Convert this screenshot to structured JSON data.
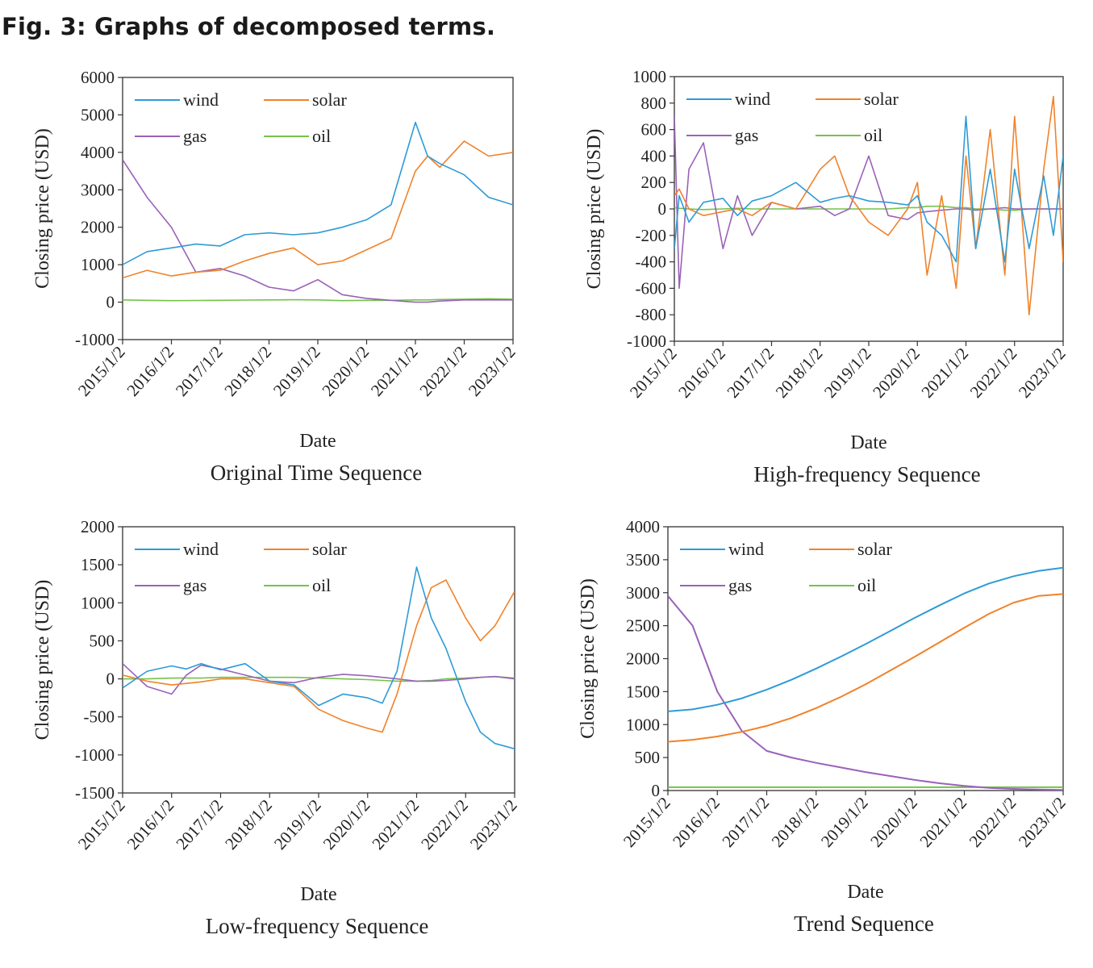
{
  "figure": {
    "title": "Fig. 3: Graphs of decomposed terms."
  },
  "colors": {
    "wind": "#2e9bd6",
    "solar": "#f0822a",
    "gas": "#9a62b8",
    "oil": "#74c24a"
  },
  "chart_data": [
    {
      "type": "line",
      "caption": "Original Time Sequence",
      "xlabel": "Date",
      "ylabel": "Closing price (USD)",
      "ylim": [
        -1000,
        6000
      ],
      "yticks": [
        "6000",
        "5000",
        "4000",
        "3000",
        "2000",
        "1000",
        "0",
        "-1000"
      ],
      "xticks": [
        "2015/1/2",
        "2016/1/2",
        "2017/1/2",
        "2018/1/2",
        "2019/1/2",
        "2020/1/2",
        "2021/1/2",
        "2022/1/2",
        "2023/1/2"
      ],
      "legend": [
        "wind",
        "solar",
        "gas",
        "oil"
      ],
      "x": [
        2015.0,
        2015.5,
        2016.0,
        2016.5,
        2017.0,
        2017.5,
        2018.0,
        2018.5,
        2019.0,
        2019.5,
        2020.0,
        2020.5,
        2021.0,
        2021.25,
        2021.5,
        2022.0,
        2022.5,
        2023.0
      ],
      "series": [
        {
          "name": "wind",
          "values": [
            1000,
            1350,
            1450,
            1550,
            1500,
            1800,
            1850,
            1800,
            1850,
            2000,
            2200,
            2600,
            4800,
            3900,
            3700,
            3400,
            2800,
            2600
          ]
        },
        {
          "name": "solar",
          "values": [
            650,
            850,
            700,
            800,
            850,
            1100,
            1300,
            1450,
            1000,
            1100,
            1400,
            1700,
            3500,
            3900,
            3600,
            4300,
            3900,
            4000
          ]
        },
        {
          "name": "gas",
          "values": [
            3800,
            2800,
            2000,
            800,
            900,
            700,
            400,
            300,
            600,
            200,
            100,
            50,
            0,
            0,
            30,
            60,
            60,
            60
          ]
        },
        {
          "name": "oil",
          "values": [
            60,
            50,
            40,
            45,
            50,
            55,
            60,
            65,
            60,
            40,
            50,
            50,
            60,
            60,
            70,
            80,
            90,
            80
          ]
        }
      ]
    },
    {
      "type": "line",
      "caption": "High-frequency Sequence",
      "xlabel": "Date",
      "ylabel": "Closing price (USD)",
      "ylim": [
        -1000,
        1000
      ],
      "yticks": [
        "1000",
        "800",
        "600",
        "400",
        "200",
        "0",
        "-200",
        "-400",
        "-600",
        "-800",
        "-1000"
      ],
      "xticks": [
        "2015/1/2",
        "2016/1/2",
        "2017/1/2",
        "2018/1/2",
        "2019/1/2",
        "2020/1/2",
        "2021/1/2",
        "2022/1/2",
        "2023/1/2"
      ],
      "legend": [
        "wind",
        "solar",
        "gas",
        "oil"
      ],
      "x": [
        2015.0,
        2015.1,
        2015.3,
        2015.6,
        2016.0,
        2016.3,
        2016.6,
        2017.0,
        2017.5,
        2018.0,
        2018.3,
        2018.6,
        2019.0,
        2019.4,
        2019.8,
        2020.0,
        2020.2,
        2020.5,
        2020.8,
        2021.0,
        2021.2,
        2021.5,
        2021.8,
        2022.0,
        2022.3,
        2022.6,
        2022.8,
        2023.0
      ],
      "series": [
        {
          "name": "wind",
          "values": [
            -300,
            100,
            -100,
            50,
            80,
            -50,
            60,
            100,
            200,
            50,
            80,
            100,
            60,
            50,
            30,
            100,
            -100,
            -200,
            -400,
            700,
            -300,
            300,
            -400,
            300,
            -300,
            250,
            -200,
            400
          ]
        },
        {
          "name": "solar",
          "values": [
            100,
            150,
            0,
            -50,
            -20,
            0,
            -50,
            50,
            0,
            300,
            400,
            100,
            -100,
            -200,
            0,
            200,
            -500,
            100,
            -600,
            400,
            -300,
            600,
            -500,
            700,
            -800,
            300,
            850,
            -400
          ]
        },
        {
          "name": "gas",
          "values": [
            700,
            -600,
            300,
            500,
            -300,
            100,
            -200,
            50,
            0,
            20,
            -50,
            0,
            400,
            -50,
            -80,
            -30,
            -20,
            -10,
            0,
            0,
            -10,
            0,
            10,
            0,
            0,
            0,
            0,
            0
          ]
        },
        {
          "name": "oil",
          "values": [
            10,
            5,
            0,
            -5,
            0,
            5,
            0,
            0,
            0,
            0,
            0,
            0,
            0,
            0,
            10,
            10,
            20,
            20,
            10,
            10,
            0,
            0,
            -10,
            -10,
            0,
            0,
            0,
            0
          ]
        }
      ]
    },
    {
      "type": "line",
      "caption": "Low-frequency Sequence",
      "xlabel": "Date",
      "ylabel": "Closing price (USD)",
      "ylim": [
        -1500,
        2000
      ],
      "yticks": [
        "2000",
        "1500",
        "1000",
        "500",
        "0",
        "-500",
        "-1000",
        "-1500"
      ],
      "xticks": [
        "2015/1/2",
        "2016/1/2",
        "2017/1/2",
        "2018/1/2",
        "2019/1/2",
        "2020/1/2",
        "2021/1/2",
        "2022/1/2",
        "2023/1/2"
      ],
      "legend": [
        "wind",
        "solar",
        "gas",
        "oil"
      ],
      "x": [
        2015.0,
        2015.5,
        2016.0,
        2016.3,
        2016.6,
        2017.0,
        2017.5,
        2018.0,
        2018.5,
        2019.0,
        2019.5,
        2020.0,
        2020.3,
        2020.6,
        2021.0,
        2021.3,
        2021.6,
        2022.0,
        2022.3,
        2022.6,
        2023.0
      ],
      "series": [
        {
          "name": "wind",
          "values": [
            -120,
            100,
            170,
            130,
            200,
            120,
            200,
            -30,
            -80,
            -350,
            -200,
            -250,
            -320,
            100,
            1470,
            800,
            400,
            -300,
            -700,
            -850,
            -920
          ]
        },
        {
          "name": "solar",
          "values": [
            50,
            -30,
            -80,
            -60,
            -40,
            0,
            0,
            -50,
            -100,
            -400,
            -550,
            -650,
            -700,
            -200,
            700,
            1200,
            1300,
            800,
            500,
            700,
            1150
          ]
        },
        {
          "name": "gas",
          "values": [
            200,
            -100,
            -200,
            50,
            180,
            130,
            50,
            -30,
            -50,
            20,
            60,
            40,
            20,
            0,
            -30,
            -30,
            -20,
            0,
            20,
            30,
            0
          ]
        },
        {
          "name": "oil",
          "values": [
            0,
            0,
            10,
            10,
            10,
            20,
            20,
            20,
            20,
            10,
            0,
            -10,
            -20,
            -30,
            -30,
            -20,
            0,
            10,
            20,
            30,
            10
          ]
        }
      ]
    },
    {
      "type": "line",
      "caption": "Trend Sequence",
      "xlabel": "Date",
      "ylabel": "Closing price (USD)",
      "ylim": [
        0,
        4000
      ],
      "yticks": [
        "4000",
        "3500",
        "3000",
        "2500",
        "2000",
        "1500",
        "1000",
        "500",
        "0"
      ],
      "xticks": [
        "2015/1/2",
        "2016/1/2",
        "2017/1/2",
        "2018/1/2",
        "2019/1/2",
        "2020/1/2",
        "2021/1/2",
        "2022/1/2",
        "2023/1/2"
      ],
      "legend": [
        "wind",
        "solar",
        "gas",
        "oil"
      ],
      "x": [
        2015.0,
        2015.5,
        2016.0,
        2016.5,
        2017.0,
        2017.5,
        2018.0,
        2018.5,
        2019.0,
        2019.5,
        2020.0,
        2020.5,
        2021.0,
        2021.5,
        2022.0,
        2022.5,
        2023.0
      ],
      "series": [
        {
          "name": "wind",
          "values": [
            1200,
            1230,
            1300,
            1400,
            1530,
            1680,
            1850,
            2030,
            2220,
            2420,
            2620,
            2810,
            2990,
            3140,
            3250,
            3330,
            3380
          ]
        },
        {
          "name": "solar",
          "values": [
            740,
            770,
            820,
            890,
            980,
            1100,
            1250,
            1420,
            1610,
            1820,
            2030,
            2250,
            2470,
            2680,
            2850,
            2950,
            2980
          ]
        },
        {
          "name": "gas",
          "values": [
            2950,
            2500,
            1500,
            900,
            600,
            500,
            420,
            350,
            280,
            220,
            160,
            110,
            70,
            40,
            25,
            15,
            10
          ]
        },
        {
          "name": "oil",
          "values": [
            50,
            50,
            50,
            50,
            50,
            50,
            50,
            50,
            50,
            50,
            50,
            50,
            50,
            50,
            50,
            50,
            50
          ]
        }
      ]
    }
  ]
}
